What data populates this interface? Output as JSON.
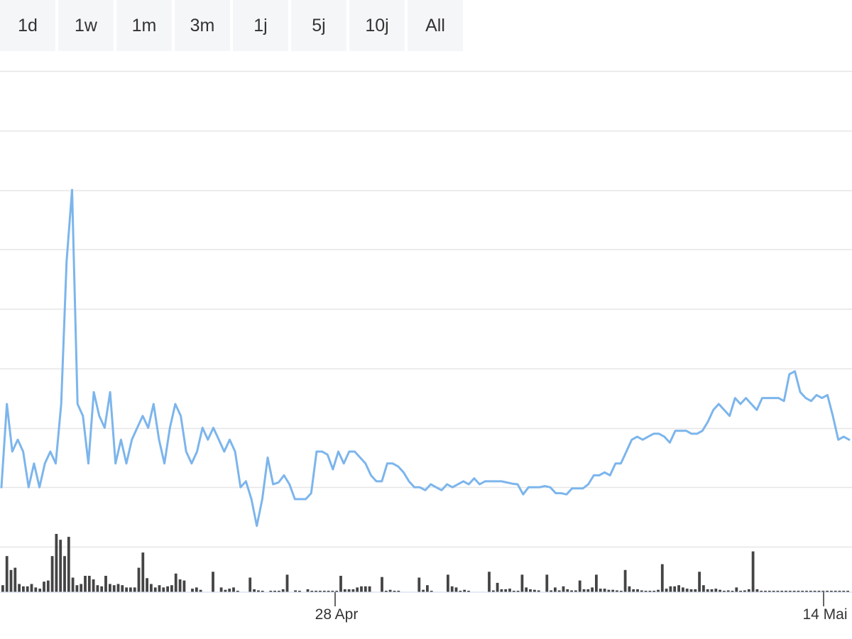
{
  "range_selector": {
    "buttons": [
      "1d",
      "1w",
      "1m",
      "3m",
      "1j",
      "5j",
      "10j",
      "All"
    ]
  },
  "chart_data": {
    "type": "line",
    "title": "",
    "xlabel": "",
    "ylabel": "",
    "x_tick_labels": [
      "28 Apr",
      "14 Mai"
    ],
    "grid": true,
    "legend": "none",
    "colors": {
      "line": "#7cb5ec",
      "volume": "#444444",
      "grid": "#e6e6e6",
      "axis": "#ccd6eb"
    },
    "ylim": [
      0,
      8
    ],
    "price_series": {
      "name": "",
      "values": [
        1.0,
        2.4,
        1.6,
        1.8,
        1.6,
        1.0,
        1.4,
        1.0,
        1.4,
        1.6,
        1.4,
        2.4,
        4.8,
        6.0,
        2.4,
        2.2,
        1.4,
        2.6,
        2.2,
        2.0,
        2.6,
        1.4,
        1.8,
        1.4,
        1.8,
        2.0,
        2.2,
        2.0,
        2.4,
        1.8,
        1.4,
        2.0,
        2.4,
        2.2,
        1.6,
        1.4,
        1.6,
        2.0,
        1.8,
        2.0,
        1.8,
        1.6,
        1.8,
        1.6,
        1.0,
        1.1,
        0.8,
        0.35,
        0.8,
        1.5,
        1.05,
        1.08,
        1.2,
        1.05,
        0.8,
        0.8,
        0.8,
        0.9,
        1.6,
        1.6,
        1.55,
        1.3,
        1.6,
        1.4,
        1.6,
        1.6,
        1.5,
        1.4,
        1.2,
        1.1,
        1.1,
        1.4,
        1.4,
        1.35,
        1.25,
        1.1,
        1.0,
        1.0,
        0.95,
        1.05,
        1.0,
        0.95,
        1.05,
        1.0,
        1.05,
        1.1,
        1.05,
        1.15,
        1.05,
        1.1,
        1.1,
        1.1,
        1.1,
        1.08,
        1.06,
        1.05,
        0.88,
        1.0,
        1.0,
        1.0,
        1.02,
        1.0,
        0.9,
        0.9,
        0.88,
        0.98,
        0.98,
        0.98,
        1.05,
        1.2,
        1.2,
        1.25,
        1.2,
        1.4,
        1.4,
        1.6,
        1.8,
        1.85,
        1.8,
        1.85,
        1.9,
        1.9,
        1.85,
        1.75,
        1.95,
        1.95,
        1.95,
        1.9,
        1.9,
        1.95,
        2.1,
        2.3,
        2.4,
        2.3,
        2.2,
        2.5,
        2.4,
        2.5,
        2.4,
        2.3,
        2.5,
        2.5,
        2.5,
        2.5,
        2.45,
        2.9,
        2.95,
        2.6,
        2.5,
        2.45,
        2.55,
        2.5,
        2.55,
        2.2,
        1.8,
        1.85,
        1.8
      ]
    },
    "volume_series": {
      "name": "",
      "ylim": [
        0,
        1
      ],
      "values": [
        0.12,
        0.62,
        0.38,
        0.42,
        0.14,
        0.1,
        0.1,
        0.14,
        0.08,
        0.06,
        0.18,
        0.2,
        0.62,
        1.0,
        0.9,
        0.62,
        0.95,
        0.25,
        0.12,
        0.14,
        0.28,
        0.28,
        0.22,
        0.12,
        0.1,
        0.28,
        0.14,
        0.12,
        0.14,
        0.12,
        0.08,
        0.08,
        0.08,
        0.42,
        0.68,
        0.24,
        0.14,
        0.08,
        0.12,
        0.08,
        0.1,
        0.12,
        0.32,
        0.22,
        0.2,
        0,
        0.06,
        0.08,
        0.04,
        0,
        0,
        0.35,
        0,
        0.08,
        0.04,
        0.06,
        0.08,
        0.02,
        0,
        0,
        0.25,
        0.05,
        0.03,
        0.02,
        0,
        0.02,
        0.02,
        0.02,
        0.05,
        0.3,
        0,
        0.03,
        0.02,
        0,
        0.05,
        0.02,
        0.02,
        0.02,
        0.02,
        0.02,
        0.02,
        0.02,
        0.28,
        0.05,
        0.05,
        0.05,
        0.08,
        0.1,
        0.1,
        0.1,
        0,
        0,
        0.26,
        0.02,
        0.04,
        0.02,
        0.02,
        0,
        0,
        0,
        0,
        0.25,
        0.04,
        0.12,
        0.02,
        0,
        0,
        0,
        0.3,
        0.1,
        0.08,
        0.02,
        0.04,
        0.02,
        0,
        0,
        0,
        0,
        0.35,
        0.03,
        0.16,
        0.05,
        0.05,
        0.06,
        0.02,
        0.02,
        0.3,
        0.08,
        0.05,
        0.04,
        0.03,
        0,
        0.3,
        0.03,
        0.08,
        0.03,
        0.1,
        0.05,
        0.03,
        0.03,
        0.2,
        0.05,
        0.05,
        0.08,
        0.3,
        0.06,
        0.06,
        0.04,
        0.04,
        0.03,
        0.02,
        0.38,
        0.1,
        0.05,
        0.05,
        0.03,
        0.02,
        0.02,
        0.02,
        0.04,
        0.48,
        0.06,
        0.1,
        0.1,
        0.12,
        0.08,
        0.06,
        0.05,
        0.05,
        0.35,
        0.12,
        0.05,
        0.05,
        0.06,
        0.04,
        0.02,
        0.03,
        0.02,
        0.08,
        0.02,
        0.03,
        0.05,
        0.7,
        0.05,
        0.02,
        0.02,
        0.02,
        0.02,
        0.02,
        0.02,
        0.02,
        0.02,
        0.02,
        0.02,
        0.02,
        0.02,
        0.02,
        0.02,
        0.02,
        0.02,
        0.02,
        0.02,
        0.02,
        0.02,
        0.02,
        0.02
      ]
    }
  }
}
